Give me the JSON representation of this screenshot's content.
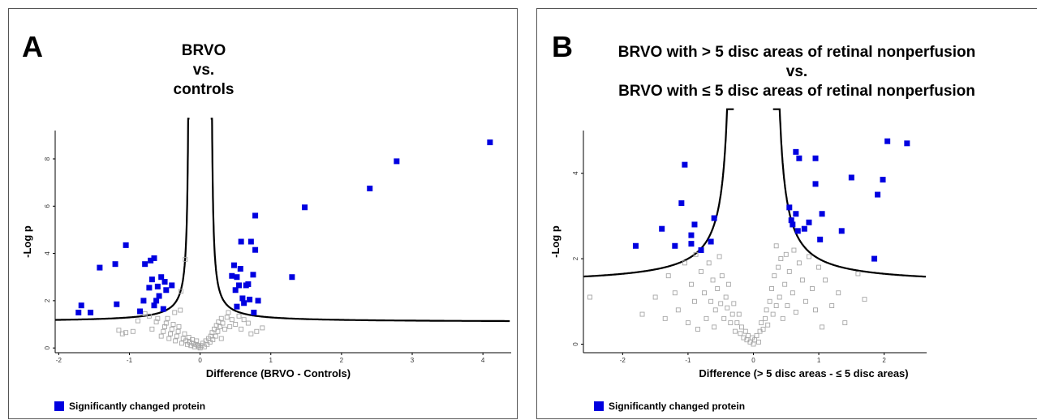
{
  "colors": {
    "significant": "#0000e0",
    "nonsignificant": "#a6a6a6",
    "curve": "#000000"
  },
  "legend": {
    "label": "Significantly changed protein"
  },
  "chart_data": [
    {
      "type": "scatter",
      "panel_label": "A",
      "title_lines": [
        "BRVO",
        "vs.",
        "controls"
      ],
      "xlabel": "Difference (BRVO - Controls)",
      "ylabel": "-Log p",
      "xlim": [
        -2.05,
        4.4
      ],
      "ylim": [
        -0.2,
        9.2
      ],
      "xticks": [
        -2,
        -1,
        0,
        1,
        2,
        3,
        4
      ],
      "yticks": [
        0,
        2,
        4,
        6,
        8
      ],
      "curve": {
        "s0": 0.15,
        "c": 1.1
      },
      "significant": [
        [
          -1.72,
          1.5
        ],
        [
          -1.68,
          1.8
        ],
        [
          -1.55,
          1.5
        ],
        [
          -1.42,
          3.4
        ],
        [
          -1.2,
          3.55
        ],
        [
          -1.18,
          1.85
        ],
        [
          -1.05,
          4.35
        ],
        [
          -0.85,
          1.55
        ],
        [
          -0.8,
          2.0
        ],
        [
          -0.78,
          3.55
        ],
        [
          -0.72,
          2.55
        ],
        [
          -0.7,
          3.7
        ],
        [
          -0.68,
          2.9
        ],
        [
          -0.65,
          3.8
        ],
        [
          -0.65,
          1.8
        ],
        [
          -0.62,
          2.0
        ],
        [
          -0.6,
          2.6
        ],
        [
          -0.58,
          2.2
        ],
        [
          -0.55,
          3.0
        ],
        [
          -0.52,
          1.65
        ],
        [
          -0.5,
          2.8
        ],
        [
          -0.48,
          2.45
        ],
        [
          -0.4,
          2.65
        ],
        [
          0.45,
          3.05
        ],
        [
          0.48,
          3.5
        ],
        [
          0.5,
          2.45
        ],
        [
          0.52,
          1.75
        ],
        [
          0.52,
          3.0
        ],
        [
          0.55,
          2.65
        ],
        [
          0.57,
          3.35
        ],
        [
          0.58,
          4.5
        ],
        [
          0.6,
          2.1
        ],
        [
          0.62,
          1.9
        ],
        [
          0.65,
          2.65
        ],
        [
          0.68,
          2.7
        ],
        [
          0.7,
          2.05
        ],
        [
          0.72,
          4.5
        ],
        [
          0.75,
          3.1
        ],
        [
          0.76,
          1.5
        ],
        [
          0.78,
          4.15
        ],
        [
          0.78,
          5.6
        ],
        [
          0.82,
          2.0
        ],
        [
          1.3,
          3.0
        ],
        [
          1.48,
          5.95
        ],
        [
          2.4,
          6.75
        ],
        [
          2.78,
          7.9
        ],
        [
          4.1,
          8.7
        ]
      ],
      "nonsignificant": [
        [
          -1.15,
          0.75
        ],
        [
          -1.1,
          0.6
        ],
        [
          -1.05,
          0.65
        ],
        [
          -0.95,
          0.7
        ],
        [
          -0.88,
          1.15
        ],
        [
          -0.78,
          1.45
        ],
        [
          -0.72,
          1.35
        ],
        [
          -0.68,
          0.8
        ],
        [
          -0.62,
          1.1
        ],
        [
          -0.6,
          1.25
        ],
        [
          -0.55,
          0.5
        ],
        [
          -0.52,
          0.7
        ],
        [
          -0.5,
          0.9
        ],
        [
          -0.48,
          1.05
        ],
        [
          -0.46,
          1.25
        ],
        [
          -0.44,
          0.4
        ],
        [
          -0.42,
          0.6
        ],
        [
          -0.4,
          0.8
        ],
        [
          -0.38,
          1.0
        ],
        [
          -0.36,
          1.5
        ],
        [
          -0.35,
          0.3
        ],
        [
          -0.33,
          0.5
        ],
        [
          -0.31,
          0.7
        ],
        [
          -0.3,
          0.9
        ],
        [
          -0.28,
          1.6
        ],
        [
          -0.27,
          2.4
        ],
        [
          -0.26,
          0.2
        ],
        [
          -0.24,
          0.4
        ],
        [
          -0.22,
          0.6
        ],
        [
          -0.21,
          3.75
        ],
        [
          -0.2,
          0.3
        ],
        [
          -0.18,
          0.15
        ],
        [
          -0.16,
          0.45
        ],
        [
          -0.15,
          0.25
        ],
        [
          -0.13,
          0.1
        ],
        [
          -0.11,
          0.35
        ],
        [
          -0.1,
          0.2
        ],
        [
          -0.08,
          0.05
        ],
        [
          -0.06,
          0.15
        ],
        [
          -0.05,
          0.3
        ],
        [
          -0.03,
          0.1
        ],
        [
          -0.02,
          0.05
        ],
        [
          0.0,
          0.0
        ],
        [
          0.02,
          0.1
        ],
        [
          0.04,
          0.2
        ],
        [
          0.06,
          0.05
        ],
        [
          0.08,
          0.3
        ],
        [
          0.1,
          0.15
        ],
        [
          0.12,
          0.4
        ],
        [
          0.14,
          0.25
        ],
        [
          0.15,
          0.5
        ],
        [
          0.17,
          0.65
        ],
        [
          0.18,
          0.35
        ],
        [
          0.2,
          0.8
        ],
        [
          0.22,
          0.5
        ],
        [
          0.23,
          0.95
        ],
        [
          0.25,
          0.7
        ],
        [
          0.26,
          1.1
        ],
        [
          0.28,
          0.9
        ],
        [
          0.3,
          1.25
        ],
        [
          0.3,
          0.4
        ],
        [
          0.32,
          1.05
        ],
        [
          0.35,
          0.8
        ],
        [
          0.38,
          1.3
        ],
        [
          0.4,
          1.5
        ],
        [
          0.42,
          0.9
        ],
        [
          0.45,
          1.2
        ],
        [
          0.5,
          1.0
        ],
        [
          0.55,
          1.35
        ],
        [
          0.58,
          0.8
        ],
        [
          0.62,
          1.2
        ],
        [
          0.68,
          1.05
        ],
        [
          0.72,
          0.6
        ],
        [
          0.8,
          0.7
        ],
        [
          0.88,
          0.85
        ]
      ]
    },
    {
      "type": "scatter",
      "panel_label": "B",
      "title_lines": [
        "BRVO with > 5 disc areas of retinal nonperfusion",
        "vs.",
        "BRVO with ≤ 5 disc areas of retinal nonperfusion"
      ],
      "xlabel": "Difference (> 5 disc areas - ≤ 5 disc areas)",
      "ylabel": "-Log p",
      "xlim": [
        -2.6,
        2.65
      ],
      "ylim": [
        -0.2,
        5.0
      ],
      "xticks": [
        -2,
        -1,
        0,
        1,
        2
      ],
      "yticks": [
        0,
        2,
        4
      ],
      "curve": {
        "s0": 0.3,
        "c": 1.4
      },
      "significant": [
        [
          -1.8,
          2.3
        ],
        [
          -1.4,
          2.7
        ],
        [
          -1.2,
          2.3
        ],
        [
          -1.1,
          3.3
        ],
        [
          -1.05,
          4.2
        ],
        [
          -0.95,
          2.55
        ],
        [
          -0.95,
          2.35
        ],
        [
          -0.9,
          2.8
        ],
        [
          -0.8,
          2.2
        ],
        [
          -0.65,
          2.4
        ],
        [
          -0.6,
          2.95
        ],
        [
          0.55,
          3.2
        ],
        [
          0.58,
          2.9
        ],
        [
          0.6,
          2.8
        ],
        [
          0.65,
          3.05
        ],
        [
          0.65,
          4.5
        ],
        [
          0.68,
          2.65
        ],
        [
          0.7,
          4.35
        ],
        [
          0.78,
          2.7
        ],
        [
          0.85,
          2.85
        ],
        [
          0.95,
          4.35
        ],
        [
          0.95,
          3.75
        ],
        [
          1.02,
          2.45
        ],
        [
          1.05,
          3.05
        ],
        [
          1.35,
          2.65
        ],
        [
          1.5,
          3.9
        ],
        [
          1.85,
          2.0
        ],
        [
          1.9,
          3.5
        ],
        [
          1.98,
          3.85
        ],
        [
          2.05,
          4.75
        ],
        [
          2.35,
          4.7
        ]
      ],
      "nonsignificant": [
        [
          -2.5,
          1.1
        ],
        [
          -1.7,
          0.7
        ],
        [
          -1.5,
          1.1
        ],
        [
          -1.35,
          0.6
        ],
        [
          -1.3,
          1.6
        ],
        [
          -1.2,
          1.2
        ],
        [
          -1.15,
          0.8
        ],
        [
          -1.05,
          1.9
        ],
        [
          -1.0,
          0.5
        ],
        [
          -0.95,
          1.4
        ],
        [
          -0.9,
          1.0
        ],
        [
          -0.88,
          2.1
        ],
        [
          -0.85,
          0.35
        ],
        [
          -0.8,
          1.7
        ],
        [
          -0.75,
          1.2
        ],
        [
          -0.72,
          0.6
        ],
        [
          -0.68,
          1.9
        ],
        [
          -0.65,
          1.0
        ],
        [
          -0.62,
          1.5
        ],
        [
          -0.6,
          0.4
        ],
        [
          -0.58,
          0.8
        ],
        [
          -0.55,
          1.3
        ],
        [
          -0.52,
          2.05
        ],
        [
          -0.5,
          0.95
        ],
        [
          -0.48,
          1.6
        ],
        [
          -0.45,
          0.6
        ],
        [
          -0.42,
          1.1
        ],
        [
          -0.4,
          0.85
        ],
        [
          -0.38,
          1.4
        ],
        [
          -0.35,
          0.5
        ],
        [
          -0.32,
          0.7
        ],
        [
          -0.3,
          0.95
        ],
        [
          -0.28,
          0.3
        ],
        [
          -0.25,
          0.5
        ],
        [
          -0.22,
          0.7
        ],
        [
          -0.2,
          0.25
        ],
        [
          -0.18,
          0.4
        ],
        [
          -0.15,
          0.15
        ],
        [
          -0.12,
          0.3
        ],
        [
          -0.1,
          0.1
        ],
        [
          -0.08,
          0.2
        ],
        [
          -0.05,
          0.05
        ],
        [
          -0.02,
          0.15
        ],
        [
          0.0,
          0.0
        ],
        [
          0.02,
          0.1
        ],
        [
          0.05,
          0.2
        ],
        [
          0.08,
          0.05
        ],
        [
          0.1,
          0.3
        ],
        [
          0.12,
          0.5
        ],
        [
          0.15,
          0.35
        ],
        [
          0.18,
          0.6
        ],
        [
          0.2,
          0.8
        ],
        [
          0.22,
          0.45
        ],
        [
          0.25,
          1.0
        ],
        [
          0.28,
          1.3
        ],
        [
          0.3,
          0.7
        ],
        [
          0.32,
          1.6
        ],
        [
          0.35,
          0.9
        ],
        [
          0.35,
          2.3
        ],
        [
          0.38,
          1.8
        ],
        [
          0.4,
          1.1
        ],
        [
          0.42,
          2.0
        ],
        [
          0.45,
          0.6
        ],
        [
          0.48,
          1.4
        ],
        [
          0.5,
          2.1
        ],
        [
          0.52,
          0.9
        ],
        [
          0.55,
          1.7
        ],
        [
          0.6,
          1.2
        ],
        [
          0.62,
          2.2
        ],
        [
          0.65,
          0.75
        ],
        [
          0.7,
          1.9
        ],
        [
          0.75,
          1.5
        ],
        [
          0.8,
          1.0
        ],
        [
          0.85,
          2.05
        ],
        [
          0.9,
          1.3
        ],
        [
          0.95,
          0.8
        ],
        [
          1.0,
          1.8
        ],
        [
          1.05,
          0.4
        ],
        [
          1.1,
          1.5
        ],
        [
          1.2,
          0.9
        ],
        [
          1.3,
          1.2
        ],
        [
          1.4,
          0.5
        ],
        [
          1.6,
          1.65
        ],
        [
          1.7,
          1.05
        ]
      ]
    }
  ]
}
